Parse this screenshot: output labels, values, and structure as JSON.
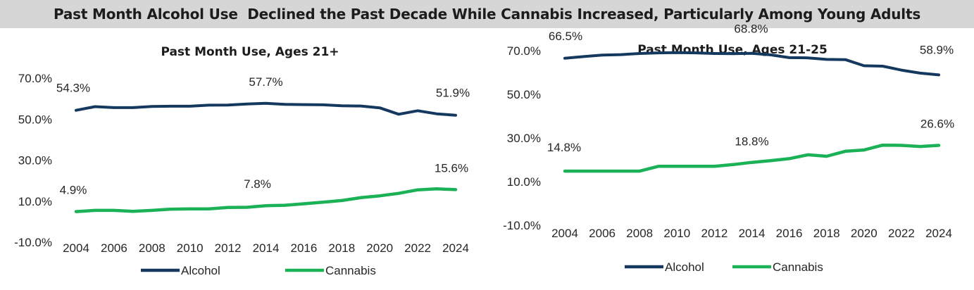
{
  "banner_title": "Past Month Alcohol Use  Declined the Past Decade While Cannabis Increased, Particularly Among Young Adults",
  "colors": {
    "alcohol": "#14385e",
    "cannabis": "#1bb156",
    "banner_bg": "#d6d6d6"
  },
  "chart_data": [
    {
      "type": "line",
      "title": "Past Month Use, Ages 21+",
      "xlabel": "",
      "ylabel": "",
      "x": [
        2004,
        2005,
        2006,
        2007,
        2008,
        2009,
        2010,
        2011,
        2012,
        2013,
        2014,
        2015,
        2016,
        2017,
        2018,
        2019,
        2020,
        2021,
        2022,
        2023,
        2024
      ],
      "x_tick_labels": [
        "2004",
        "2006",
        "2008",
        "2010",
        "2012",
        "2014",
        "2016",
        "2018",
        "2020",
        "2022",
        "2024"
      ],
      "y_tick_labels": [
        "70.0%",
        "50.0%",
        "30.0%",
        "10.0%",
        "-10.0%"
      ],
      "ylim": [
        -10,
        70
      ],
      "grid": false,
      "legend_position": "bottom",
      "series": [
        {
          "name": "Alcohol",
          "color": "#14385e",
          "values": [
            54.3,
            56.1,
            55.6,
            55.6,
            56.2,
            56.3,
            56.3,
            56.8,
            56.9,
            57.4,
            57.7,
            57.2,
            57.1,
            57.0,
            56.5,
            56.4,
            55.5,
            52.4,
            54.1,
            52.6,
            51.9
          ]
        },
        {
          "name": "Cannabis",
          "color": "#1bb156",
          "values": [
            4.9,
            5.5,
            5.5,
            5.0,
            5.5,
            6.1,
            6.2,
            6.2,
            6.9,
            7.0,
            7.8,
            8.0,
            8.7,
            9.5,
            10.3,
            11.7,
            12.6,
            13.8,
            15.5,
            16.0,
            15.6
          ]
        }
      ],
      "data_labels": [
        {
          "series": "Alcohol",
          "x": 2004,
          "text": "54.3%"
        },
        {
          "series": "Alcohol",
          "x": 2014,
          "text": "57.7%"
        },
        {
          "series": "Alcohol",
          "x": 2024,
          "text": "51.9%"
        },
        {
          "series": "Cannabis",
          "x": 2004,
          "text": "4.9%"
        },
        {
          "series": "Cannabis",
          "x": 2014,
          "text": "7.8%"
        },
        {
          "series": "Cannabis",
          "x": 2024,
          "text": "15.6%"
        }
      ]
    },
    {
      "type": "line",
      "title": "Past Month Use, Ages 21-25",
      "xlabel": "",
      "ylabel": "",
      "x": [
        2004,
        2005,
        2006,
        2007,
        2008,
        2009,
        2010,
        2011,
        2012,
        2013,
        2014,
        2015,
        2016,
        2017,
        2018,
        2019,
        2020,
        2021,
        2022,
        2023,
        2024
      ],
      "x_tick_labels": [
        "2004",
        "2006",
        "2008",
        "2010",
        "2012",
        "2014",
        "2016",
        "2018",
        "2020",
        "2022",
        "2024"
      ],
      "y_tick_labels": [
        "70.0%",
        "50.0%",
        "30.0%",
        "10.0%",
        "-10.0%"
      ],
      "ylim": [
        -10,
        70
      ],
      "grid": false,
      "legend_position": "bottom",
      "series": [
        {
          "name": "Alcohol",
          "color": "#14385e",
          "values": [
            66.5,
            67.3,
            68.0,
            68.2,
            68.7,
            69.0,
            69.1,
            69.0,
            68.7,
            68.6,
            68.8,
            68.1,
            66.8,
            66.7,
            66.0,
            65.9,
            63.1,
            62.9,
            61.1,
            59.7,
            58.9
          ]
        },
        {
          "name": "Cannabis",
          "color": "#1bb156",
          "values": [
            14.8,
            14.8,
            14.8,
            14.8,
            14.8,
            17.0,
            17.0,
            17.0,
            17.0,
            17.8,
            18.8,
            19.6,
            20.5,
            22.3,
            21.6,
            23.9,
            24.5,
            26.7,
            26.6,
            26.1,
            26.6
          ]
        }
      ],
      "data_labels": [
        {
          "series": "Alcohol",
          "x": 2004,
          "text": "66.5%"
        },
        {
          "series": "Alcohol",
          "x": 2014,
          "text": "68.8%"
        },
        {
          "series": "Alcohol",
          "x": 2024,
          "text": "58.9%"
        },
        {
          "series": "Cannabis",
          "x": 2004,
          "text": "14.8%"
        },
        {
          "series": "Cannabis",
          "x": 2014,
          "text": "18.8%"
        },
        {
          "series": "Cannabis",
          "x": 2024,
          "text": "26.6%"
        }
      ]
    }
  ]
}
